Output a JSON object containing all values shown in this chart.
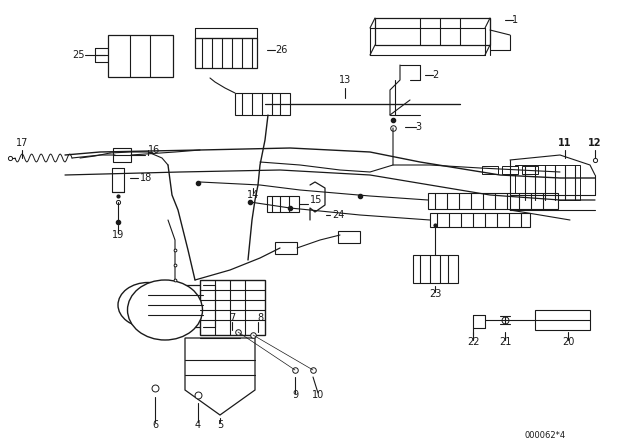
{
  "background_color": "#ffffff",
  "diagram_color": "#1a1a1a",
  "watermark": "000062*4",
  "fig_w": 6.4,
  "fig_h": 4.48,
  "dpi": 100,
  "xmin": 0,
  "xmax": 640,
  "ymin": 0,
  "ymax": 448
}
